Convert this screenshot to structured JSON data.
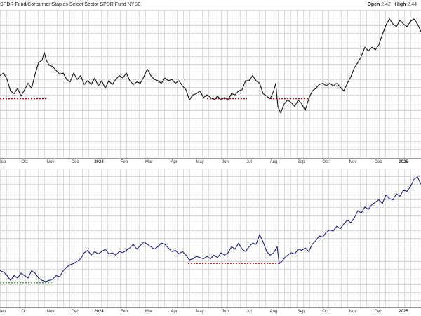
{
  "header": {
    "title": "SPDR Fund/Consumer Staples Select Sector SPDR Fund",
    "exchange": "NYSE",
    "open_label": "Open",
    "open_value": "2.42",
    "high_label": "High",
    "high_value": "2.44"
  },
  "colors": {
    "top_line": "#111111",
    "bottom_line": "#1a1a8c",
    "red_dash": "#d40000",
    "green_dash": "#22aa22",
    "grid": "#dcdcdc"
  },
  "chart_data": [
    {
      "type": "line",
      "panel": "top",
      "title": "",
      "x_tick_labels": [
        "Sep",
        "Oct",
        "Nov",
        "Dec",
        "2024",
        "Feb",
        "Mar",
        "Apr",
        "May",
        "Jun",
        "Jul",
        "Aug",
        "Sep",
        "Oct",
        "Nov",
        "Dec",
        "2025"
      ],
      "bold_ticks": [
        "2024",
        "2025"
      ],
      "series": [
        {
          "values": [
            [
              0,
              0.64
            ],
            [
              5,
              0.66
            ],
            [
              10,
              0.61
            ],
            [
              15,
              0.52
            ],
            [
              20,
              0.5
            ],
            [
              25,
              0.54
            ],
            [
              30,
              0.48
            ],
            [
              35,
              0.53
            ],
            [
              40,
              0.58
            ],
            [
              45,
              0.54
            ],
            [
              50,
              0.65
            ],
            [
              55,
              0.74
            ],
            [
              60,
              0.76
            ],
            [
              63,
              0.82
            ],
            [
              66,
              0.76
            ],
            [
              70,
              0.72
            ],
            [
              75,
              0.71
            ],
            [
              80,
              0.68
            ],
            [
              85,
              0.65
            ],
            [
              90,
              0.66
            ],
            [
              95,
              0.61
            ],
            [
              100,
              0.59
            ],
            [
              105,
              0.66
            ],
            [
              110,
              0.61
            ],
            [
              115,
              0.64
            ],
            [
              120,
              0.57
            ],
            [
              125,
              0.6
            ],
            [
              130,
              0.57
            ],
            [
              135,
              0.62
            ],
            [
              140,
              0.56
            ],
            [
              145,
              0.6
            ],
            [
              150,
              0.54
            ],
            [
              155,
              0.6
            ],
            [
              160,
              0.57
            ],
            [
              165,
              0.61
            ],
            [
              170,
              0.64
            ],
            [
              175,
              0.62
            ],
            [
              180,
              0.66
            ],
            [
              185,
              0.6
            ],
            [
              190,
              0.57
            ],
            [
              195,
              0.59
            ],
            [
              200,
              0.58
            ],
            [
              205,
              0.63
            ],
            [
              210,
              0.69
            ],
            [
              215,
              0.64
            ],
            [
              220,
              0.61
            ],
            [
              225,
              0.6
            ],
            [
              230,
              0.58
            ],
            [
              235,
              0.62
            ],
            [
              240,
              0.6
            ],
            [
              245,
              0.61
            ],
            [
              250,
              0.58
            ],
            [
              255,
              0.6
            ],
            [
              260,
              0.56
            ],
            [
              265,
              0.53
            ],
            [
              270,
              0.45
            ],
            [
              275,
              0.49
            ],
            [
              280,
              0.5
            ],
            [
              285,
              0.52
            ],
            [
              290,
              0.47
            ],
            [
              295,
              0.49
            ],
            [
              300,
              0.47
            ],
            [
              305,
              0.45
            ],
            [
              310,
              0.48
            ],
            [
              315,
              0.45
            ],
            [
              320,
              0.47
            ],
            [
              325,
              0.45
            ],
            [
              330,
              0.5
            ],
            [
              335,
              0.49
            ],
            [
              340,
              0.52
            ],
            [
              345,
              0.53
            ],
            [
              350,
              0.6
            ],
            [
              355,
              0.6
            ],
            [
              360,
              0.64
            ],
            [
              365,
              0.6
            ],
            [
              370,
              0.58
            ],
            [
              375,
              0.5
            ],
            [
              380,
              0.48
            ],
            [
              385,
              0.46
            ],
            [
              390,
              0.52
            ],
            [
              393,
              0.58
            ],
            [
              396,
              0.4
            ],
            [
              400,
              0.35
            ],
            [
              405,
              0.42
            ],
            [
              410,
              0.45
            ],
            [
              415,
              0.43
            ],
            [
              420,
              0.4
            ],
            [
              425,
              0.45
            ],
            [
              430,
              0.42
            ],
            [
              435,
              0.37
            ],
            [
              440,
              0.46
            ],
            [
              445,
              0.52
            ],
            [
              450,
              0.54
            ],
            [
              455,
              0.57
            ],
            [
              460,
              0.58
            ],
            [
              465,
              0.56
            ],
            [
              470,
              0.58
            ],
            [
              475,
              0.56
            ],
            [
              480,
              0.58
            ],
            [
              485,
              0.55
            ],
            [
              490,
              0.52
            ],
            [
              495,
              0.58
            ],
            [
              500,
              0.63
            ],
            [
              505,
              0.7
            ],
            [
              510,
              0.74
            ],
            [
              515,
              0.79
            ],
            [
              520,
              0.86
            ],
            [
              525,
              0.83
            ],
            [
              530,
              0.86
            ],
            [
              535,
              0.84
            ],
            [
              540,
              0.88
            ],
            [
              545,
              0.96
            ],
            [
              550,
              1.03
            ],
            [
              555,
              1.08
            ],
            [
              560,
              1.04
            ],
            [
              565,
              1.02
            ],
            [
              570,
              1.07
            ],
            [
              575,
              1.04
            ],
            [
              580,
              1.02
            ],
            [
              585,
              1.06
            ],
            [
              590,
              1.08
            ],
            [
              595,
              1.04
            ],
            [
              600,
              0.98
            ]
          ]
        }
      ],
      "reference_lines": [
        {
          "color": "red",
          "y": 0.46,
          "x": [
            0,
            68
          ]
        },
        {
          "color": "red",
          "y": 0.46,
          "x": [
            295,
            352
          ]
        },
        {
          "color": "red",
          "y": 0.46,
          "x": [
            385,
            440
          ]
        }
      ],
      "grid": true
    },
    {
      "type": "line",
      "panel": "bottom",
      "title": "",
      "x_tick_labels": [
        "Sep",
        "Oct",
        "Nov",
        "Dec",
        "2024",
        "Feb",
        "Mar",
        "Apr",
        "May",
        "Jun",
        "Jul",
        "Aug",
        "Sep",
        "Oct",
        "Nov",
        "Dec",
        "2025"
      ],
      "bold_ticks": [
        "2024",
        "2025"
      ],
      "series": [
        {
          "values": [
            [
              0,
              0.3
            ],
            [
              5,
              0.29
            ],
            [
              10,
              0.26
            ],
            [
              15,
              0.22
            ],
            [
              20,
              0.26
            ],
            [
              25,
              0.24
            ],
            [
              30,
              0.28
            ],
            [
              35,
              0.26
            ],
            [
              40,
              0.24
            ],
            [
              45,
              0.3
            ],
            [
              50,
              0.28
            ],
            [
              55,
              0.24
            ],
            [
              60,
              0.22
            ],
            [
              65,
              0.21
            ],
            [
              70,
              0.22
            ],
            [
              75,
              0.23
            ],
            [
              80,
              0.26
            ],
            [
              85,
              0.25
            ],
            [
              90,
              0.3
            ],
            [
              95,
              0.33
            ],
            [
              100,
              0.35
            ],
            [
              105,
              0.36
            ],
            [
              110,
              0.38
            ],
            [
              115,
              0.4
            ],
            [
              120,
              0.45
            ],
            [
              125,
              0.47
            ],
            [
              130,
              0.43
            ],
            [
              135,
              0.46
            ],
            [
              140,
              0.44
            ],
            [
              145,
              0.46
            ],
            [
              150,
              0.48
            ],
            [
              155,
              0.44
            ],
            [
              160,
              0.45
            ],
            [
              165,
              0.43
            ],
            [
              170,
              0.46
            ],
            [
              175,
              0.45
            ],
            [
              180,
              0.47
            ],
            [
              185,
              0.49
            ],
            [
              190,
              0.52
            ],
            [
              195,
              0.48
            ],
            [
              200,
              0.51
            ],
            [
              205,
              0.54
            ],
            [
              210,
              0.52
            ],
            [
              215,
              0.5
            ],
            [
              220,
              0.48
            ],
            [
              225,
              0.5
            ],
            [
              230,
              0.53
            ],
            [
              235,
              0.52
            ],
            [
              240,
              0.49
            ],
            [
              245,
              0.46
            ],
            [
              250,
              0.47
            ],
            [
              255,
              0.44
            ],
            [
              260,
              0.46
            ],
            [
              265,
              0.43
            ],
            [
              270,
              0.39
            ],
            [
              275,
              0.4
            ],
            [
              280,
              0.42
            ],
            [
              285,
              0.41
            ],
            [
              290,
              0.4
            ],
            [
              295,
              0.42
            ],
            [
              300,
              0.4
            ],
            [
              305,
              0.43
            ],
            [
              310,
              0.41
            ],
            [
              315,
              0.45
            ],
            [
              320,
              0.43
            ],
            [
              325,
              0.45
            ],
            [
              330,
              0.5
            ],
            [
              335,
              0.48
            ],
            [
              340,
              0.53
            ],
            [
              345,
              0.48
            ],
            [
              350,
              0.46
            ],
            [
              355,
              0.5
            ],
            [
              360,
              0.53
            ],
            [
              365,
              0.52
            ],
            [
              370,
              0.6
            ],
            [
              375,
              0.54
            ],
            [
              380,
              0.46
            ],
            [
              385,
              0.43
            ],
            [
              390,
              0.45
            ],
            [
              395,
              0.5
            ],
            [
              398,
              0.36
            ],
            [
              402,
              0.38
            ],
            [
              406,
              0.41
            ],
            [
              410,
              0.43
            ],
            [
              415,
              0.45
            ],
            [
              420,
              0.44
            ],
            [
              425,
              0.48
            ],
            [
              430,
              0.47
            ],
            [
              435,
              0.49
            ],
            [
              440,
              0.46
            ],
            [
              445,
              0.52
            ],
            [
              450,
              0.55
            ],
            [
              455,
              0.59
            ],
            [
              460,
              0.58
            ],
            [
              465,
              0.62
            ],
            [
              470,
              0.64
            ],
            [
              475,
              0.63
            ],
            [
              480,
              0.67
            ],
            [
              485,
              0.65
            ],
            [
              490,
              0.69
            ],
            [
              495,
              0.72
            ],
            [
              500,
              0.7
            ],
            [
              505,
              0.74
            ],
            [
              510,
              0.8
            ],
            [
              515,
              0.78
            ],
            [
              520,
              0.83
            ],
            [
              525,
              0.81
            ],
            [
              530,
              0.85
            ],
            [
              535,
              0.87
            ],
            [
              540,
              0.89
            ],
            [
              545,
              0.86
            ],
            [
              550,
              0.93
            ],
            [
              555,
              0.9
            ],
            [
              560,
              0.89
            ],
            [
              565,
              0.94
            ],
            [
              570,
              0.92
            ],
            [
              575,
              0.97
            ],
            [
              580,
              0.96
            ],
            [
              585,
              1.0
            ],
            [
              590,
              1.06
            ],
            [
              595,
              1.08
            ],
            [
              600,
              1.02
            ]
          ]
        }
      ],
      "reference_lines": [
        {
          "color": "green",
          "y": 0.2,
          "x": [
            0,
            75
          ]
        },
        {
          "color": "red",
          "y": 0.36,
          "x": [
            268,
            400
          ]
        }
      ],
      "grid": true
    }
  ]
}
